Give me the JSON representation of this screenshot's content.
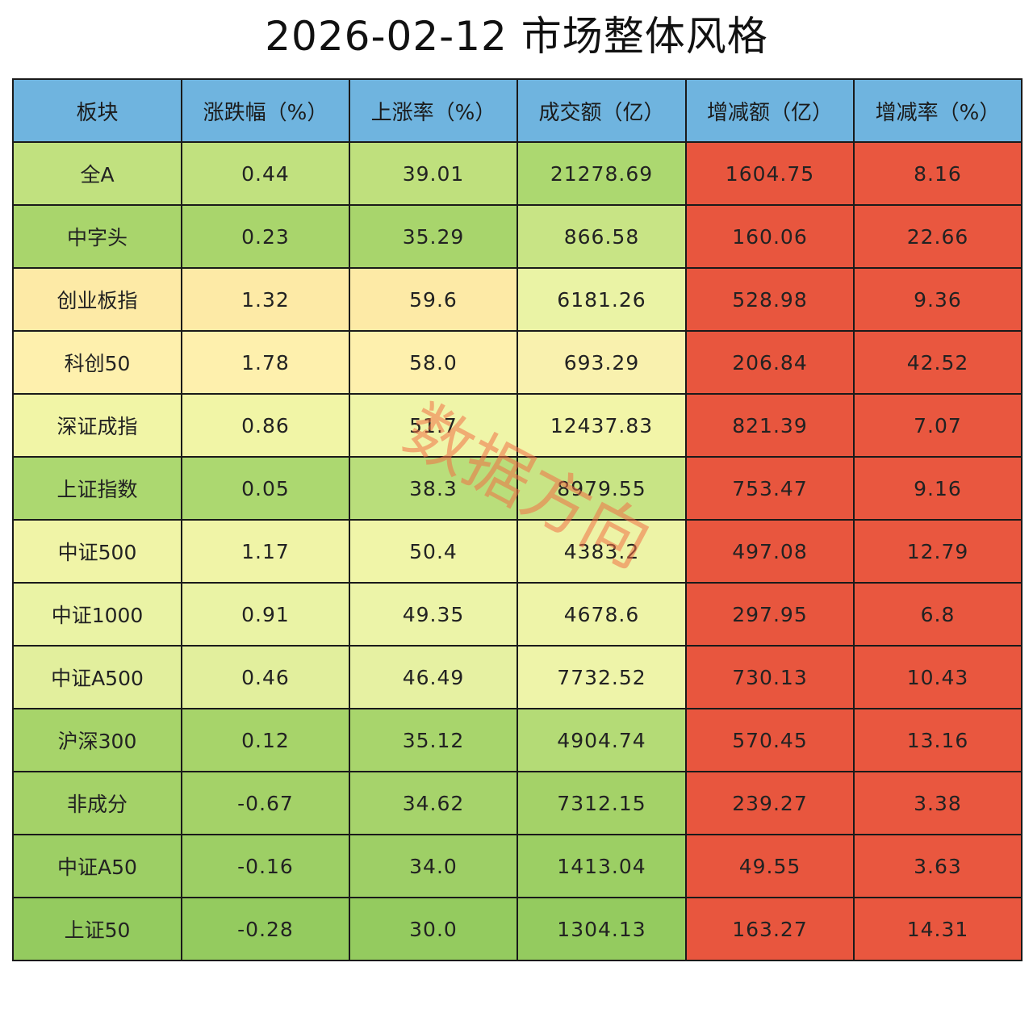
{
  "title": "2026-02-12 市场整体风格",
  "table": {
    "headers": [
      "板块",
      "涨跌幅（%）",
      "上涨率（%）",
      "成交额（亿）",
      "增减额（亿）",
      "增减率（%）"
    ],
    "rows": [
      [
        "全A",
        "0.44",
        "39.01",
        "21278.69",
        "1604.75",
        "8.16"
      ],
      [
        "中字头",
        "0.23",
        "35.29",
        "866.58",
        "160.06",
        "22.66"
      ],
      [
        "创业板指",
        "1.32",
        "59.6",
        "6181.26",
        "528.98",
        "9.36"
      ],
      [
        "科创50",
        "1.78",
        "58.0",
        "693.29",
        "206.84",
        "42.52"
      ],
      [
        "深证成指",
        "0.86",
        "51.7",
        "12437.83",
        "821.39",
        "7.07"
      ],
      [
        "上证指数",
        "0.05",
        "38.3",
        "8979.55",
        "753.47",
        "9.16"
      ],
      [
        "中证500",
        "1.17",
        "50.4",
        "4383.2",
        "497.08",
        "12.79"
      ],
      [
        "中证1000",
        "0.91",
        "49.35",
        "4678.6",
        "297.95",
        "6.8"
      ],
      [
        "中证A500",
        "0.46",
        "46.49",
        "7732.52",
        "730.13",
        "10.43"
      ],
      [
        "沪深300",
        "0.12",
        "35.12",
        "4904.74",
        "570.45",
        "13.16"
      ],
      [
        "非成分",
        "-0.67",
        "34.62",
        "7312.15",
        "239.27",
        "3.38"
      ],
      [
        "中证A50",
        "-0.16",
        "34.0",
        "1413.04",
        "49.55",
        "3.63"
      ],
      [
        "上证50",
        "-0.28",
        "30.0",
        "1304.13",
        "163.27",
        "14.31"
      ]
    ],
    "cell_colors": [
      [
        "#c1e17f",
        "#c1e17f",
        "#bfe07d",
        "#acd870",
        "#e8563e",
        "#e9573f"
      ],
      [
        "#a9d56c",
        "#a9d56c",
        "#a8d56c",
        "#c8e485",
        "#e8563e",
        "#e9573f"
      ],
      [
        "#fdeaa6",
        "#fdeaa6",
        "#fdeaa6",
        "#eaf3a5",
        "#e8563e",
        "#e9573f"
      ],
      [
        "#fef0ad",
        "#fef0ad",
        "#fef0ad",
        "#f9f1ae",
        "#e8563e",
        "#e9573f"
      ],
      [
        "#f1f5a6",
        "#f1f5a6",
        "#eff5a8",
        "#f2f5a8",
        "#e8563e",
        "#e9573f"
      ],
      [
        "#acd870",
        "#acd870",
        "#b9de7b",
        "#c8e485",
        "#e8563e",
        "#e9573f"
      ],
      [
        "#f0f4a7",
        "#f0f4a7",
        "#f0f5a8",
        "#edf3a6",
        "#e8563e",
        "#e9573f"
      ],
      [
        "#eaf3a5",
        "#eaf3a5",
        "#ecf4a8",
        "#eef4a8",
        "#e8563e",
        "#e9573f"
      ],
      [
        "#e2ef9d",
        "#e2ef9d",
        "#e6f1a2",
        "#eef4a9",
        "#e8563e",
        "#e9573f"
      ],
      [
        "#a7d46a",
        "#a7d46a",
        "#a8d56c",
        "#b4db76",
        "#e8563e",
        "#e9573f"
      ],
      [
        "#a4d268",
        "#a4d268",
        "#a6d36b",
        "#a4d268",
        "#e8563e",
        "#e9573f"
      ],
      [
        "#9dcf65",
        "#9dcf65",
        "#9ecf66",
        "#9ccf64",
        "#e8563e",
        "#e9573f"
      ],
      [
        "#94cb5f",
        "#94cb5f",
        "#94cb5f",
        "#94cb5f",
        "#e8563e",
        "#e9573f"
      ]
    ]
  },
  "watermark": {
    "text": "数据方向",
    "color": "#f07045"
  }
}
